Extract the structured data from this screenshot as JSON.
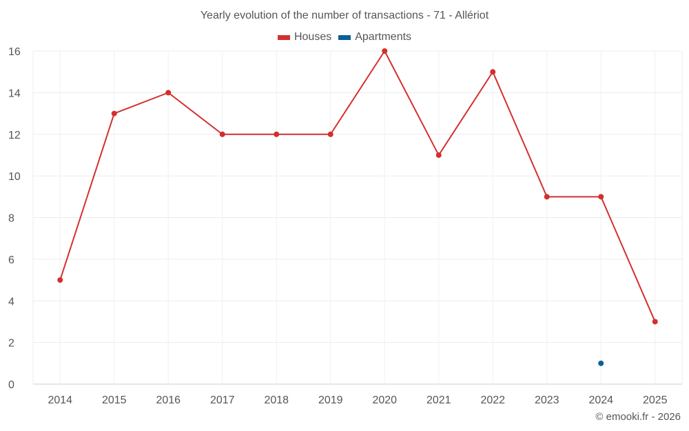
{
  "chart_data": {
    "type": "line",
    "title": "Yearly evolution of the number of transactions - 71 - Allériot",
    "categories": [
      "2014",
      "2015",
      "2016",
      "2017",
      "2018",
      "2019",
      "2020",
      "2021",
      "2022",
      "2023",
      "2024",
      "2025"
    ],
    "series": [
      {
        "name": "Houses",
        "color": "#d32f2f",
        "values": [
          5,
          13,
          14,
          12,
          12,
          12,
          16,
          11,
          15,
          9,
          9,
          3
        ]
      },
      {
        "name": "Apartments",
        "color": "#0b6096",
        "values": [
          null,
          null,
          null,
          null,
          null,
          null,
          null,
          null,
          null,
          null,
          1,
          null
        ]
      }
    ],
    "ylim": [
      0,
      16
    ],
    "yticks": [
      0,
      2,
      4,
      6,
      8,
      10,
      12,
      14,
      16
    ],
    "xlabel": "",
    "ylabel": "",
    "grid": true,
    "legend_position": "top-center"
  },
  "watermark": "© emooki.fr - 2026"
}
